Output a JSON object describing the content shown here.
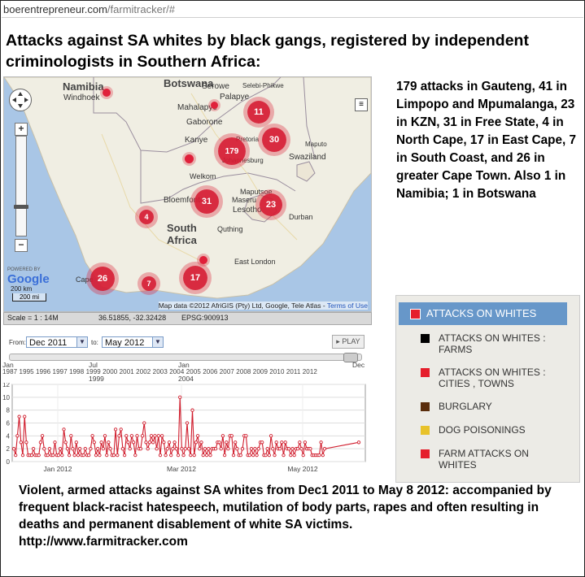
{
  "browser": {
    "url_host": "boerentrepreneur.com",
    "url_path": "/farmitracker/#"
  },
  "headline": "Attacks against SA whites by black gangs, registered by independent criminologists in Southern Africa:",
  "map": {
    "labels": {
      "namibia": "Namibia",
      "botswana": "Botswana",
      "windhoek": "Windhoek",
      "serowe": "Serowe",
      "selebi": "Selebi-Phikwe",
      "palapye": "Palapye",
      "mahalapye": "Mahalapye",
      "gaborone": "Gaborone",
      "kanye": "Kanye",
      "pretoria": "Pretoria",
      "johannesburg": "Johannesburg",
      "maputo": "Maputo",
      "swaziland": "Swaziland",
      "welkom": "Welkom",
      "maputsoe": "Maputsoe",
      "bloemfontein": "Bloemfontein",
      "maseru": "Maseru",
      "lesotho": "Lesotho",
      "durban": "Durban",
      "south": "South",
      "africa": "Africa",
      "quthing": "Quthing",
      "east_london": "East London",
      "cape": "Cape"
    },
    "clusters": {
      "gauteng": "179",
      "limpopo": "11",
      "mpumalanga": "30",
      "free_state": "31",
      "kzn": "23",
      "north_cape": "4",
      "cape_town": "26",
      "south_coast": "7",
      "east_cape": "17"
    },
    "google_powered": "POWERED BY",
    "google_logo": "Google",
    "scale_km": "200 km",
    "scale_mi": "200 mi",
    "credit": "Map data ©2012 AfriGIS (Pty) Ltd, Google, Tele Atlas - ",
    "terms": "Terms of Use",
    "status": {
      "scale": "Scale = 1 : 14M",
      "coords": "36.51855, -32.32428",
      "epsg": "EPSG:900913"
    },
    "colors": {
      "water": "#a9c6e6",
      "land": "#f0eee3",
      "cluster": "#d61a32"
    }
  },
  "side_text": "179 attacks in Gauteng, 41 in Limpopo and Mpumalanga, 23 in KZN, 31 in Free State, 4 in North Cape, 17 in East Cape, 7 in South Coast, and 26 in greater Cape Town. Also 1 in Namibia; 1 in Botswana",
  "legend": {
    "header": "ATTACKS ON WHITES",
    "items": [
      {
        "label": "ATTACKS ON WHITES : FARMS",
        "color": "#000000"
      },
      {
        "label": "ATTACKS ON WHITES : CITIES , TOWNS",
        "color": "#e51e2b"
      },
      {
        "label": "BURGLARY",
        "color": "#5a2d0c"
      },
      {
        "label": "DOG POISONINGS",
        "color": "#e8c22a"
      },
      {
        "label": "FARM ATTACKS ON WHITES",
        "color": "#e51e2b"
      }
    ]
  },
  "time_controls": {
    "from_label": "From:",
    "from_value": "Dec 2011",
    "to_label": "to:",
    "to_value": "May 2012",
    "play_label": "PLAY"
  },
  "timeline": {
    "top": [
      "Jan",
      "Jul",
      "Jan",
      "Dec"
    ],
    "mid": [
      "1987",
      "1999",
      "2004",
      "2012"
    ],
    "years": "1987 1995 1996 1997 1998 1999 2000 2001 2002 2003 2004 2005 2006 2007 2008 2009 2010 2011 2012"
  },
  "chart_data": {
    "type": "line",
    "y_ticks": [
      "12",
      "10",
      "8",
      "6",
      "4",
      "2",
      "0"
    ],
    "ylim": [
      0,
      12
    ],
    "x_tick_labels": [
      "Jan 2012",
      "Mar 2012",
      "May 2012"
    ],
    "grid": true,
    "color": "#d01c2c",
    "series": [
      {
        "values": [
          2,
          1,
          4,
          7,
          3,
          1,
          7,
          3,
          1,
          1,
          1,
          2,
          1,
          1,
          1,
          3,
          4,
          2,
          1,
          1,
          2,
          1,
          1,
          3,
          1,
          1,
          2,
          1,
          5,
          3,
          2,
          1,
          4,
          2,
          1,
          3,
          1,
          2,
          1,
          1,
          2,
          1,
          1,
          2,
          4,
          3,
          1,
          2,
          1,
          3,
          2,
          4,
          1,
          3,
          2,
          1,
          1,
          5,
          1,
          4,
          5,
          2,
          1,
          4,
          3,
          2,
          4,
          3,
          1,
          4,
          2,
          2,
          4,
          6,
          3,
          2,
          3,
          4,
          3,
          4,
          2,
          4,
          1,
          4,
          3,
          1,
          2,
          3,
          1,
          2,
          3,
          2,
          1,
          10,
          2,
          1,
          2,
          6,
          2,
          1,
          8,
          1,
          3,
          4,
          2,
          3,
          1,
          2,
          1,
          2,
          1,
          2,
          2,
          2,
          3,
          3,
          2,
          4,
          1,
          3,
          2,
          4,
          4,
          1,
          3,
          2,
          1,
          1,
          2,
          4,
          4,
          1,
          1,
          2,
          1,
          2,
          1,
          2,
          3,
          3,
          1,
          1,
          2,
          1,
          4,
          2,
          1,
          3,
          2,
          2,
          3,
          1,
          3,
          2,
          2,
          1,
          2,
          1,
          2,
          2,
          3,
          2,
          1,
          3,
          2,
          2,
          2,
          1,
          1,
          1,
          1,
          1,
          3,
          1,
          2,
          3
        ]
      }
    ]
  },
  "caption": "Violent, armed attacks against SA whites from Dec1 2011 to May 8 2012: accompanied by frequent black-racist hatespeech, mutilation of body parts, rapes and often resulting in deaths and permanent disablement of white SA victims.",
  "caption_url": "http://www.farmitracker.com"
}
